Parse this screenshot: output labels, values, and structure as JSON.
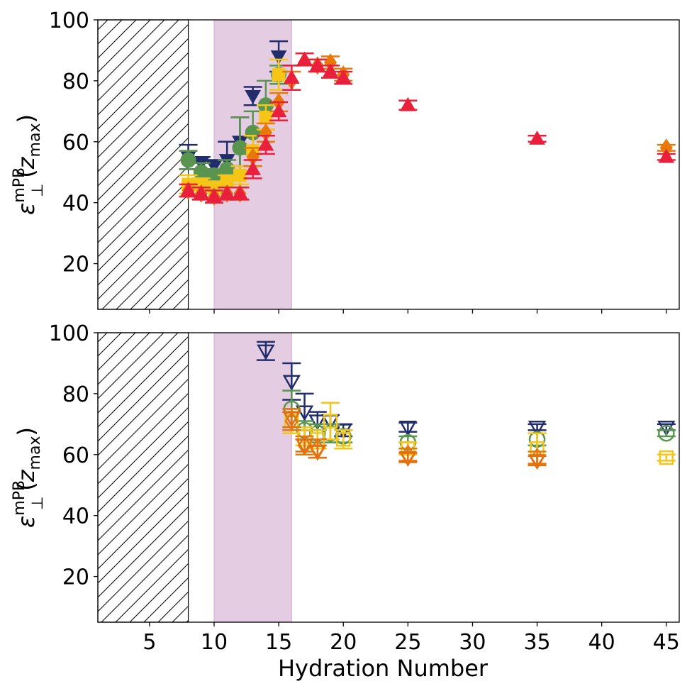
{
  "chart_data": [
    {
      "type": "scatter",
      "panel": "top",
      "marker_style": "filled",
      "ylabel": {
        "symbol": "ε",
        "sup": "mPB",
        "sub": "⊥",
        "arg_open": "(",
        "arg_var": "z",
        "arg_sub": "max",
        "arg_close": ")"
      },
      "xlabel": "",
      "xlim": [
        1,
        46
      ],
      "ylim": [
        5,
        100
      ],
      "xticks": [
        5,
        10,
        15,
        20,
        25,
        30,
        35,
        40,
        45
      ],
      "yticks": [
        20,
        40,
        60,
        80,
        100
      ],
      "show_xtick_labels": false,
      "hatched_region": [
        1,
        8
      ],
      "shaded_region": [
        10,
        16
      ],
      "series": [
        {
          "name": "navy",
          "color": "#222d6b",
          "marker": "triangle-down",
          "x": [
            8,
            9,
            10,
            11,
            12,
            13,
            15
          ],
          "y": [
            55,
            53,
            52,
            54,
            60,
            75,
            88
          ],
          "err": [
            4,
            2,
            2,
            6,
            8,
            3,
            5
          ]
        },
        {
          "name": "green",
          "color": "#5a9550",
          "marker": "circle",
          "x": [
            8,
            9,
            10,
            11,
            12,
            13,
            14,
            15
          ],
          "y": [
            54,
            50,
            49,
            51,
            58,
            63,
            72,
            82
          ],
          "err": [
            3,
            3,
            2,
            3,
            10,
            7,
            8,
            3
          ]
        },
        {
          "name": "yellow",
          "color": "#f5c518",
          "marker": "square",
          "x": [
            8,
            9,
            10,
            11,
            12,
            13,
            14,
            15
          ],
          "y": [
            46,
            46,
            45,
            47,
            49,
            57,
            68,
            82
          ],
          "err": [
            3,
            2,
            2,
            2,
            3,
            5,
            4,
            5
          ]
        },
        {
          "name": "orange",
          "color": "#e8780a",
          "marker": "diamond",
          "x": [
            8,
            9,
            10,
            11,
            12,
            13,
            14,
            15,
            16,
            18,
            19,
            20,
            45
          ],
          "y": [
            44,
            43,
            42,
            43,
            43,
            55,
            63,
            73,
            80,
            85,
            86,
            82,
            58
          ],
          "err": [
            2,
            2,
            2,
            2,
            2,
            3,
            3,
            3,
            3,
            2,
            2,
            2,
            1
          ]
        },
        {
          "name": "red",
          "color": "#e8203c",
          "marker": "triangle-up",
          "x": [
            8,
            9,
            10,
            11,
            12,
            13,
            14,
            15,
            16,
            17,
            18,
            19,
            20,
            25,
            35,
            45
          ],
          "y": [
            44,
            43,
            42,
            43,
            43,
            51,
            59,
            70,
            81,
            87,
            85,
            83,
            81,
            72,
            61,
            55
          ],
          "err": [
            2,
            2,
            2,
            2,
            2,
            3,
            3,
            3,
            4,
            2,
            2,
            2,
            2,
            1.5,
            1,
            1
          ]
        }
      ]
    },
    {
      "type": "scatter",
      "panel": "bottom",
      "marker_style": "open",
      "ylabel": {
        "symbol": "ε",
        "sup": "mPB",
        "sub": "⊥",
        "arg_open": "(",
        "arg_var": "z",
        "arg_sub": "max",
        "arg_close": ")"
      },
      "xlabel": "Hydration Number",
      "xlim": [
        1,
        46
      ],
      "ylim": [
        5,
        100
      ],
      "xticks": [
        5,
        10,
        15,
        20,
        25,
        30,
        35,
        40,
        45
      ],
      "yticks": [
        20,
        40,
        60,
        80,
        100
      ],
      "show_xtick_labels": true,
      "hatched_region": [
        1,
        8
      ],
      "shaded_region": [
        10,
        16
      ],
      "series": [
        {
          "name": "navy",
          "color": "#222d6b",
          "marker": "triangle-down",
          "x": [
            14,
            16,
            17,
            18,
            19,
            20,
            25,
            35,
            45
          ],
          "y": [
            94,
            84,
            74,
            71,
            71,
            68,
            69,
            69,
            69
          ],
          "err": [
            3,
            6,
            6,
            3,
            2,
            2,
            1.5,
            1,
            1
          ]
        },
        {
          "name": "green",
          "color": "#5a9550",
          "marker": "circle",
          "x": [
            16,
            17,
            18,
            19,
            20,
            25,
            35,
            45
          ],
          "y": [
            75,
            68,
            67,
            67,
            66,
            64,
            65,
            67
          ],
          "err": [
            6,
            3,
            3,
            3,
            2,
            2,
            2,
            1
          ]
        },
        {
          "name": "yellow",
          "color": "#f5c518",
          "marker": "square",
          "x": [
            16,
            17,
            18,
            19,
            20,
            25,
            35,
            45
          ],
          "y": [
            71,
            66,
            65,
            71,
            65,
            62,
            62,
            59
          ],
          "err": [
            4,
            3,
            3,
            6,
            3,
            2,
            5,
            1
          ]
        },
        {
          "name": "orange",
          "color": "#e8780a",
          "marker": "diamond",
          "x": [
            16,
            17,
            18,
            25,
            35
          ],
          "y": [
            71,
            63,
            62,
            60,
            59
          ],
          "err": [
            3,
            3,
            3,
            2,
            2
          ]
        },
        {
          "name": "darkorange",
          "color": "#e07010",
          "marker": "triangle-down",
          "x": [
            16,
            17,
            18,
            25,
            35
          ],
          "y": [
            72,
            63,
            61,
            59,
            58
          ],
          "err": [
            3,
            2,
            2,
            1.5,
            1.5
          ]
        }
      ]
    }
  ]
}
